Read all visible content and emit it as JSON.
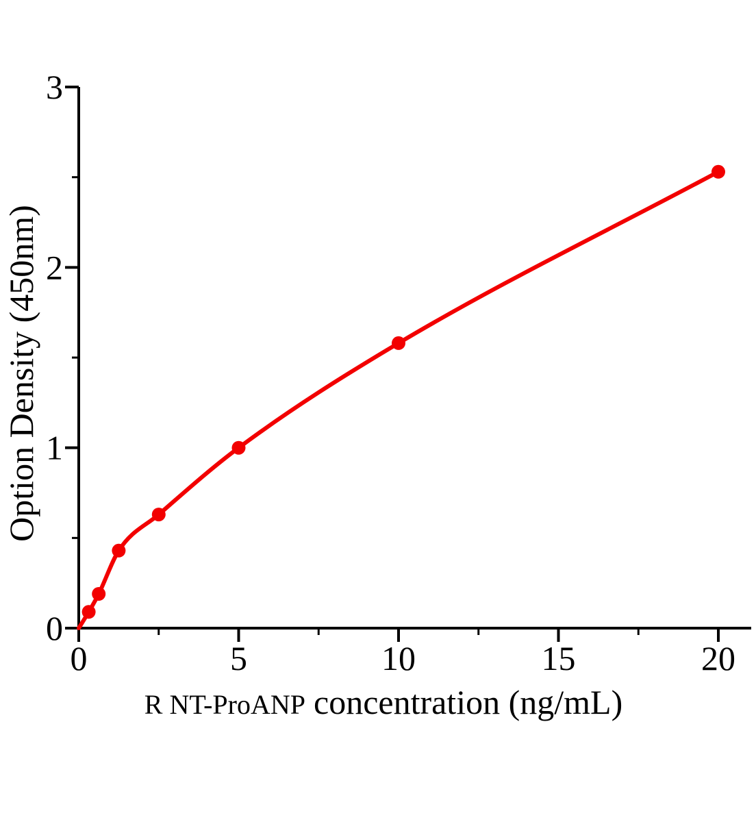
{
  "chart_data": {
    "type": "scatter",
    "title": "",
    "xlabel": "R NT-ProANP concentration（ng/mL）",
    "xlabel_prefix": "R NT-ProANP",
    "xlabel_main": "concentration（ng/mL）",
    "ylabel": "Option Density（450nm）",
    "x": [
      0.313,
      0.625,
      1.25,
      2.5,
      5,
      10,
      20
    ],
    "y": [
      0.09,
      0.19,
      0.43,
      0.63,
      1.0,
      1.58,
      2.53
    ],
    "curve": {
      "type": "smooth-fit",
      "starts_at_origin": true,
      "start": [
        0,
        0
      ]
    },
    "xlim": [
      0,
      21.5
    ],
    "ylim": [
      0,
      3
    ],
    "x_major_ticks": [
      0,
      5,
      10,
      15,
      20
    ],
    "x_minor_ticks": [
      2.5,
      7.5,
      12.5,
      17.5
    ],
    "y_major_ticks": [
      0,
      1,
      2,
      3
    ],
    "y_minor_ticks": [
      0.5,
      1.5,
      2.5
    ],
    "grid": false,
    "legend": null,
    "colors": {
      "series": "#f20000",
      "axis": "#000000",
      "background": "#ffffff"
    }
  }
}
